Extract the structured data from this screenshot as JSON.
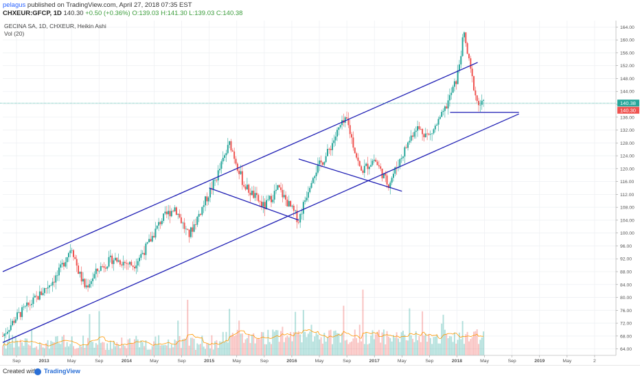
{
  "header": {
    "author": "pelagus",
    "published": "published on TradingView.com, April 27, 2018 07:35 EST",
    "symbol": "CHXEUR:GFCP, 1D",
    "last": "140.30",
    "change": "+0.50 (+0.36%)",
    "ohlc": "O:139.03 H:141.30 L:139.03 C:140.38"
  },
  "legend": {
    "title": "GECINA SA, 1D, CHXEUR, Heikin Ashi",
    "volume": "Vol (20)"
  },
  "chart_data": {
    "type": "candlestick",
    "style": "Heikin Ashi",
    "y_ticks": [
      "64.00",
      "68.00",
      "72.00",
      "76.00",
      "80.00",
      "84.00",
      "88.00",
      "92.00",
      "96.00",
      "100.00",
      "104.00",
      "108.00",
      "112.00",
      "116.00",
      "120.00",
      "124.00",
      "128.00",
      "132.00",
      "136.00",
      "140.00",
      "144.00",
      "148.00",
      "152.00",
      "156.00",
      "160.00",
      "164.00"
    ],
    "x_ticks": [
      "Sep",
      "2013",
      "May",
      "Sep",
      "2014",
      "May",
      "Sep",
      "2015",
      "May",
      "Sep",
      "2016",
      "May",
      "Sep",
      "2017",
      "May",
      "Sep",
      "2018",
      "May",
      "Sep",
      "2019",
      "May",
      "2"
    ],
    "ylim": [
      62,
      166
    ],
    "current_price_label": "140.38",
    "previous_close_label": "140.30",
    "price_path": [
      [
        "2012-07",
        68
      ],
      [
        "2012-09",
        74
      ],
      [
        "2012-12",
        80
      ],
      [
        "2013-03",
        87
      ],
      [
        "2013-05",
        96
      ],
      [
        "2013-06",
        88
      ],
      [
        "2013-07",
        83
      ],
      [
        "2013-09",
        89
      ],
      [
        "2013-11",
        92
      ],
      [
        "2014-02",
        90
      ],
      [
        "2014-04",
        96
      ],
      [
        "2014-06",
        104
      ],
      [
        "2014-08",
        108
      ],
      [
        "2014-10",
        99
      ],
      [
        "2014-12",
        108
      ],
      [
        "2015-02",
        117
      ],
      [
        "2015-04",
        128
      ],
      [
        "2015-06",
        115
      ],
      [
        "2015-09",
        108
      ],
      [
        "2015-11",
        114
      ],
      [
        "2016-02",
        104
      ],
      [
        "2016-04",
        118
      ],
      [
        "2016-06",
        124
      ],
      [
        "2016-08",
        133
      ],
      [
        "2016-09",
        135
      ],
      [
        "2016-11",
        119
      ],
      [
        "2017-01",
        123
      ],
      [
        "2017-03",
        115
      ],
      [
        "2017-05",
        124
      ],
      [
        "2017-07",
        133
      ],
      [
        "2017-09",
        130
      ],
      [
        "2017-11",
        137
      ],
      [
        "2018-01",
        148
      ],
      [
        "2018-02",
        162
      ],
      [
        "2018-03",
        150
      ],
      [
        "2018-04",
        140
      ]
    ],
    "trendlines": [
      {
        "name": "channel-upper",
        "from": [
          "2012-07",
          88
        ],
        "to": [
          "2018-04",
          153
        ]
      },
      {
        "name": "channel-lower",
        "from": [
          "2012-07",
          66
        ],
        "to": [
          "2018-10",
          137
        ]
      },
      {
        "name": "support-flat",
        "from": [
          "2017-12",
          137.5
        ],
        "to": [
          "2018-10",
          137.5
        ]
      },
      {
        "name": "declining-2015",
        "from": [
          "2015-01",
          114
        ],
        "to": [
          "2016-02",
          104
        ]
      },
      {
        "name": "declining-2016",
        "from": [
          "2016-02",
          123
        ],
        "to": [
          "2017-05",
          113
        ]
      }
    ],
    "volume_visible": true,
    "grid": true,
    "colors": {
      "up": "#26a69a",
      "down": "#ef5350",
      "trendline": "#1e1eb4",
      "price_label_up": "#26a69a",
      "price_label_down": "#ef5350",
      "volume_ma": "#ff9800"
    }
  },
  "footer": {
    "created": "Created with",
    "brand": "TradingView"
  }
}
